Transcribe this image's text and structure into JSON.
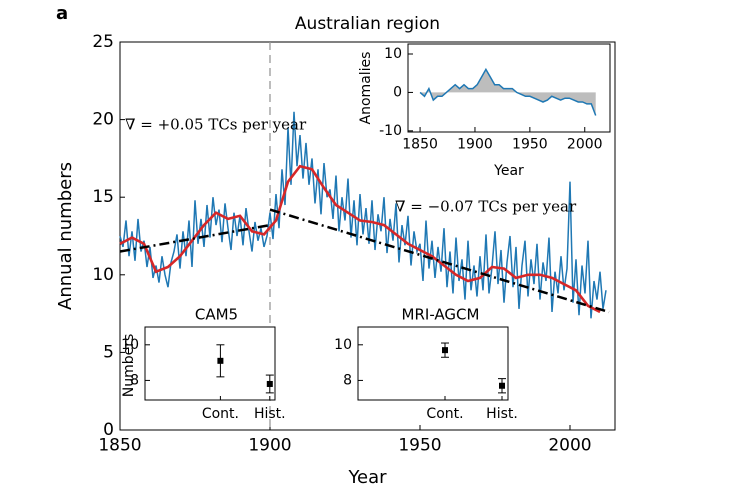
{
  "chart_data": [
    {
      "type": "line",
      "panel_label": "a",
      "title": "Australian region",
      "xlabel": "Year",
      "ylabel": "Annual numbers",
      "xlim": [
        1850,
        2015
      ],
      "ylim": [
        0,
        25
      ],
      "xticks": [
        1850,
        1900,
        1950,
        2000
      ],
      "yticks": [
        0,
        5,
        10,
        15,
        20,
        25
      ],
      "vline": 1900,
      "series": [
        {
          "color": "#1f78b4",
          "x": [
            1850,
            1851,
            1852,
            1853,
            1854,
            1855,
            1856,
            1857,
            1858,
            1859,
            1860,
            1861,
            1862,
            1863,
            1864,
            1865,
            1866,
            1867,
            1868,
            1869,
            1870,
            1871,
            1872,
            1873,
            1874,
            1875,
            1876,
            1877,
            1878,
            1879,
            1880,
            1881,
            1882,
            1883,
            1884,
            1885,
            1886,
            1887,
            1888,
            1889,
            1890,
            1891,
            1892,
            1893,
            1894,
            1895,
            1896,
            1897,
            1898,
            1899,
            1900,
            1901,
            1902,
            1903,
            1904,
            1905,
            1906,
            1907,
            1908,
            1909,
            1910,
            1911,
            1912,
            1913,
            1914,
            1915,
            1916,
            1917,
            1918,
            1919,
            1920,
            1921,
            1922,
            1923,
            1924,
            1925,
            1926,
            1927,
            1928,
            1929,
            1930,
            1931,
            1932,
            1933,
            1934,
            1935,
            1936,
            1937,
            1938,
            1939,
            1940,
            1941,
            1942,
            1943,
            1944,
            1945,
            1946,
            1947,
            1948,
            1949,
            1950,
            1951,
            1952,
            1953,
            1954,
            1955,
            1956,
            1957,
            1958,
            1959,
            1960,
            1961,
            1962,
            1963,
            1964,
            1965,
            1966,
            1967,
            1968,
            1969,
            1970,
            1971,
            1972,
            1973,
            1974,
            1975,
            1976,
            1977,
            1978,
            1979,
            1980,
            1981,
            1982,
            1983,
            1984,
            1985,
            1986,
            1987,
            1988,
            1989,
            1990,
            1991,
            1992,
            1993,
            1994,
            1995,
            1996,
            1997,
            1998,
            1999,
            2000,
            2001,
            2002,
            2003,
            2004,
            2005,
            2006,
            2007,
            2008,
            2009,
            2010,
            2011,
            2012
          ],
          "values": [
            12.5,
            11.8,
            13.5,
            11.2,
            12.8,
            10.9,
            13.6,
            11.5,
            12.2,
            10.5,
            11.8,
            9.8,
            10.6,
            9.5,
            11.2,
            10.0,
            9.2,
            10.8,
            11.5,
            12.6,
            10.4,
            12.8,
            11.2,
            13.5,
            10.5,
            14.8,
            12.0,
            13.6,
            11.8,
            14.5,
            12.4,
            15.0,
            13.2,
            14.2,
            12.1,
            14.6,
            13.0,
            11.6,
            14.0,
            12.5,
            13.8,
            11.9,
            14.3,
            12.8,
            11.5,
            13.4,
            12.2,
            13.0,
            11.8,
            12.5,
            14.0,
            12.3,
            15.2,
            13.0,
            16.8,
            14.5,
            19.5,
            15.8,
            20.5,
            17.0,
            19.0,
            16.2,
            18.5,
            15.8,
            17.5,
            14.6,
            16.8,
            13.9,
            17.2,
            15.0,
            15.5,
            13.6,
            16.4,
            12.8,
            15.0,
            13.5,
            16.2,
            12.4,
            14.8,
            11.9,
            15.2,
            12.6,
            14.3,
            12.0,
            14.8,
            11.6,
            13.9,
            12.8,
            15.0,
            11.4,
            13.6,
            12.2,
            14.6,
            10.8,
            13.2,
            11.9,
            13.8,
            10.6,
            12.8,
            11.5,
            12.0,
            9.6,
            13.5,
            10.4,
            12.2,
            9.8,
            11.8,
            10.2,
            13.0,
            9.2,
            11.5,
            8.8,
            12.4,
            9.6,
            11.0,
            8.4,
            12.2,
            9.0,
            10.6,
            8.6,
            11.2,
            9.0,
            12.6,
            8.8,
            10.5,
            12.8,
            9.4,
            11.6,
            8.2,
            10.8,
            12.5,
            9.2,
            11.8,
            7.8,
            10.6,
            12.2,
            8.6,
            11.0,
            9.4,
            12.0,
            8.4,
            10.8,
            9.6,
            12.4,
            7.6,
            10.2,
            8.8,
            11.2,
            9.0,
            10.4,
            16.0,
            8.2,
            11.0,
            7.4,
            10.6,
            8.8,
            12.2,
            7.2,
            9.6,
            8.4,
            10.2,
            7.8,
            9.0
          ]
        },
        {
          "color": "#d62728",
          "x": [
            1850,
            1854,
            1858,
            1862,
            1866,
            1870,
            1874,
            1878,
            1882,
            1886,
            1890,
            1894,
            1898,
            1902,
            1906,
            1910,
            1914,
            1918,
            1922,
            1926,
            1930,
            1934,
            1938,
            1942,
            1946,
            1950,
            1954,
            1958,
            1962,
            1966,
            1970,
            1974,
            1978,
            1982,
            1986,
            1990,
            1994,
            1998,
            2002,
            2006,
            2010
          ],
          "values": [
            12.0,
            12.4,
            12.0,
            10.2,
            10.5,
            11.2,
            12.2,
            13.2,
            14.0,
            13.6,
            13.8,
            12.8,
            12.6,
            13.5,
            16.0,
            17.0,
            16.8,
            15.6,
            14.5,
            14.0,
            13.5,
            13.4,
            13.2,
            12.6,
            12.0,
            11.6,
            11.2,
            10.6,
            10.0,
            9.6,
            9.8,
            10.5,
            10.4,
            9.8,
            10.0,
            10.0,
            9.8,
            9.4,
            9.0,
            8.0,
            7.6
          ]
        }
      ],
      "annotations": [
        {
          "text": "∇ = +0.05 TCs per year",
          "x": [
            1850,
            1900
          ],
          "y": [
            11.5,
            13.2
          ]
        },
        {
          "text": "∇ = −0.07 TCs per year",
          "x": [
            1900,
            2013
          ],
          "y": [
            14.2,
            7.6
          ]
        }
      ]
    },
    {
      "type": "area",
      "xlabel": "Year",
      "ylabel": "Anomalies",
      "xlim": [
        1839,
        2023
      ],
      "ylim": [
        -10.3,
        12.6
      ],
      "xticks": [
        1850,
        1900,
        1950,
        2000
      ],
      "yticks": [
        -10,
        0,
        10
      ],
      "color": "#1f78b4",
      "fill": "#bdbdbd",
      "x": [
        1850,
        1854,
        1858,
        1862,
        1866,
        1870,
        1874,
        1878,
        1882,
        1886,
        1890,
        1894,
        1898,
        1902,
        1906,
        1910,
        1914,
        1918,
        1922,
        1926,
        1930,
        1934,
        1938,
        1942,
        1946,
        1950,
        1954,
        1958,
        1962,
        1966,
        1970,
        1974,
        1978,
        1982,
        1986,
        1990,
        1994,
        1998,
        2002,
        2006,
        2010
      ],
      "values": [
        0,
        -1,
        1,
        -2,
        -1,
        -1,
        0,
        1,
        2,
        1,
        2,
        1,
        1,
        2,
        4,
        6,
        4,
        2,
        2,
        1,
        1,
        1,
        0,
        -0.5,
        -1,
        -1,
        -1.5,
        -2,
        -2.5,
        -2,
        -1,
        -1.5,
        -2,
        -1.5,
        -1.5,
        -2,
        -2.5,
        -2.5,
        -3,
        -3,
        -6
      ]
    },
    {
      "type": "errorbar",
      "title": "CAM5",
      "ylabel": "Numbers",
      "categories": [
        "Cont.",
        "Hist."
      ],
      "values": [
        9.1,
        7.8
      ],
      "errors": [
        0.9,
        0.5
      ],
      "ylim": [
        6.9,
        11
      ],
      "yticks": [
        8,
        10
      ]
    },
    {
      "type": "errorbar",
      "title": "MRI-AGCM",
      "categories": [
        "Cont.",
        "Hist."
      ],
      "values": [
        9.7,
        7.7
      ],
      "errors": [
        0.4,
        0.4
      ],
      "ylim": [
        6.9,
        11
      ],
      "yticks": [
        8,
        10
      ]
    }
  ]
}
